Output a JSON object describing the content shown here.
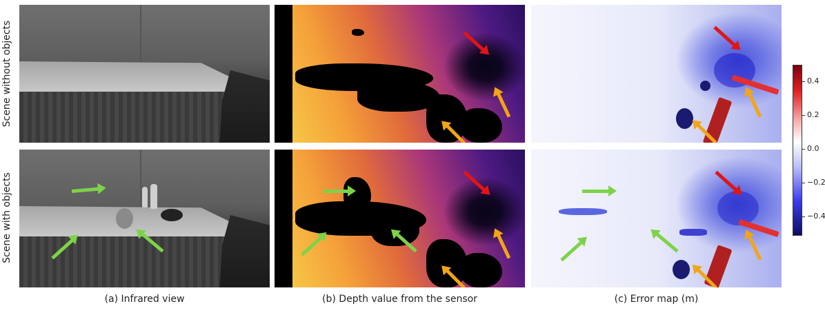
{
  "row_labels": {
    "top": "Scene without objects",
    "bottom": "Scene with objects"
  },
  "captions": {
    "infrared": "(a) Infrared view",
    "depth": "(b) Depth value from the sensor",
    "error": "(c) Error map (m)"
  },
  "colorbar": {
    "ticks": [
      "0.4",
      "0.2",
      "0.0",
      "−0.2",
      "−0.4"
    ],
    "colormap": "seismic",
    "range": [
      -0.5,
      0.5
    ]
  },
  "colors": {
    "arrow_red": "#e01515",
    "arrow_orange": "#f2a516",
    "arrow_green": "#7ed24a"
  }
}
